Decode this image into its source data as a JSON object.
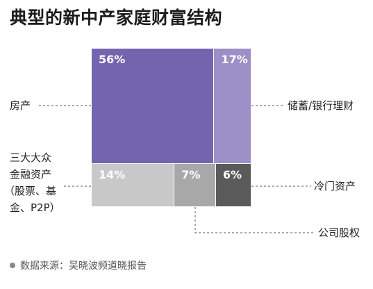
{
  "title": "典型的新中产家庭财富结构",
  "source": "数据来源：吴晓波频道晓报告",
  "chart_data": {
    "type": "treemap",
    "title": "典型的新中产家庭财富结构",
    "unit": "%",
    "items": [
      {
        "name": "房产",
        "value": 56,
        "label": "56%",
        "color": "#7264ae"
      },
      {
        "name": "储蓄/银行理财",
        "value": 17,
        "label": "17%",
        "color": "#9a8fc6"
      },
      {
        "name": "三大大众金融资产（股票、基金、P2P）",
        "value": 14,
        "label": "14%",
        "color": "#c8c8c8"
      },
      {
        "name": "公司股权",
        "value": 7,
        "label": "7%",
        "color": "#a8a8a8"
      },
      {
        "name": "冷门资产",
        "value": 6,
        "label": "6%",
        "color": "#5a5a5a"
      }
    ]
  },
  "labels": {
    "house": "房产",
    "savings": "储蓄/银行理财",
    "fin_line1": "三大大众",
    "fin_line2": "金融资产",
    "fin_line3": "（股票、基",
    "fin_line4": "金、P2P）",
    "alt": "冷门资产",
    "equity": "公司股权"
  }
}
